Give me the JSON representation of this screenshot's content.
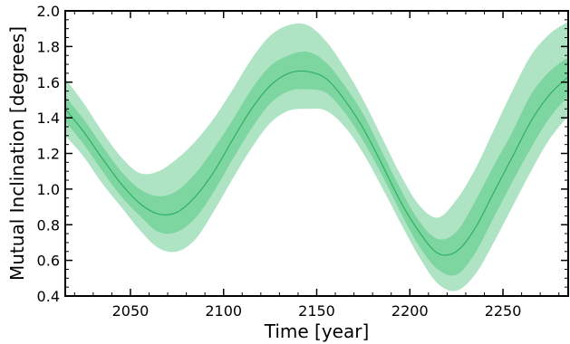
{
  "chart_data": {
    "type": "area",
    "title": "",
    "xlabel": "Time [year]",
    "ylabel": "Mutual Inclination [degrees]",
    "xlim": [
      2015,
      2285
    ],
    "ylim": [
      0.4,
      2.0
    ],
    "xticks": [
      2050,
      2100,
      2150,
      2200,
      2250
    ],
    "xtick_labels": [
      "2050",
      "2100",
      "2150",
      "2200",
      "2250"
    ],
    "yticks": [
      0.4,
      0.6,
      0.8,
      1.0,
      1.2,
      1.4,
      1.6,
      1.8,
      2.0
    ],
    "ytick_labels": [
      "0.4",
      "0.6",
      "0.8",
      "1.0",
      "1.2",
      "1.4",
      "1.6",
      "1.8",
      "2.0"
    ],
    "grid": false,
    "legend": "none",
    "colors": {
      "outer_band": "#aee3c4",
      "inner_band": "#7dd5a0",
      "median_line": "#2fb064",
      "axes": "#000000"
    },
    "series": [
      {
        "role": "median",
        "x": [
          2015,
          2025,
          2035,
          2045,
          2055,
          2065,
          2075,
          2085,
          2095,
          2105,
          2115,
          2125,
          2135,
          2145,
          2155,
          2165,
          2175,
          2185,
          2195,
          2205,
          2215,
          2225,
          2235,
          2245,
          2255,
          2265,
          2275,
          2285
        ],
        "y": [
          1.45,
          1.32,
          1.17,
          1.03,
          0.92,
          0.86,
          0.87,
          0.96,
          1.1,
          1.28,
          1.45,
          1.58,
          1.65,
          1.66,
          1.62,
          1.5,
          1.34,
          1.14,
          0.93,
          0.76,
          0.64,
          0.65,
          0.78,
          0.98,
          1.18,
          1.38,
          1.53,
          1.63
        ]
      },
      {
        "role": "inner_band",
        "x": [
          2015,
          2025,
          2035,
          2045,
          2055,
          2065,
          2075,
          2085,
          2095,
          2105,
          2115,
          2125,
          2135,
          2145,
          2155,
          2165,
          2175,
          2185,
          2195,
          2205,
          2215,
          2225,
          2235,
          2245,
          2255,
          2265,
          2275,
          2285
        ],
        "lower": [
          1.38,
          1.25,
          1.1,
          0.96,
          0.85,
          0.76,
          0.76,
          0.84,
          0.99,
          1.17,
          1.34,
          1.48,
          1.55,
          1.56,
          1.54,
          1.43,
          1.27,
          1.08,
          0.87,
          0.68,
          0.55,
          0.52,
          0.64,
          0.84,
          1.04,
          1.23,
          1.4,
          1.52
        ],
        "upper": [
          1.52,
          1.39,
          1.24,
          1.1,
          1.0,
          0.96,
          0.99,
          1.09,
          1.23,
          1.39,
          1.56,
          1.69,
          1.75,
          1.77,
          1.71,
          1.58,
          1.42,
          1.21,
          1.0,
          0.82,
          0.72,
          0.76,
          0.93,
          1.13,
          1.32,
          1.53,
          1.66,
          1.74
        ]
      },
      {
        "role": "outer_band",
        "x": [
          2015,
          2025,
          2035,
          2045,
          2055,
          2065,
          2075,
          2085,
          2095,
          2105,
          2115,
          2125,
          2135,
          2145,
          2155,
          2165,
          2175,
          2185,
          2195,
          2205,
          2215,
          2225,
          2235,
          2245,
          2255,
          2265,
          2275,
          2285
        ],
        "lower": [
          1.3,
          1.18,
          1.03,
          0.9,
          0.77,
          0.67,
          0.65,
          0.72,
          0.88,
          1.06,
          1.23,
          1.37,
          1.44,
          1.45,
          1.44,
          1.35,
          1.2,
          1.01,
          0.81,
          0.62,
          0.47,
          0.43,
          0.52,
          0.7,
          0.9,
          1.1,
          1.28,
          1.41
        ],
        "upper": [
          1.62,
          1.48,
          1.32,
          1.18,
          1.09,
          1.1,
          1.17,
          1.27,
          1.4,
          1.56,
          1.73,
          1.86,
          1.92,
          1.92,
          1.83,
          1.68,
          1.5,
          1.29,
          1.08,
          0.91,
          0.84,
          0.94,
          1.11,
          1.33,
          1.55,
          1.75,
          1.87,
          1.94
        ]
      }
    ]
  }
}
